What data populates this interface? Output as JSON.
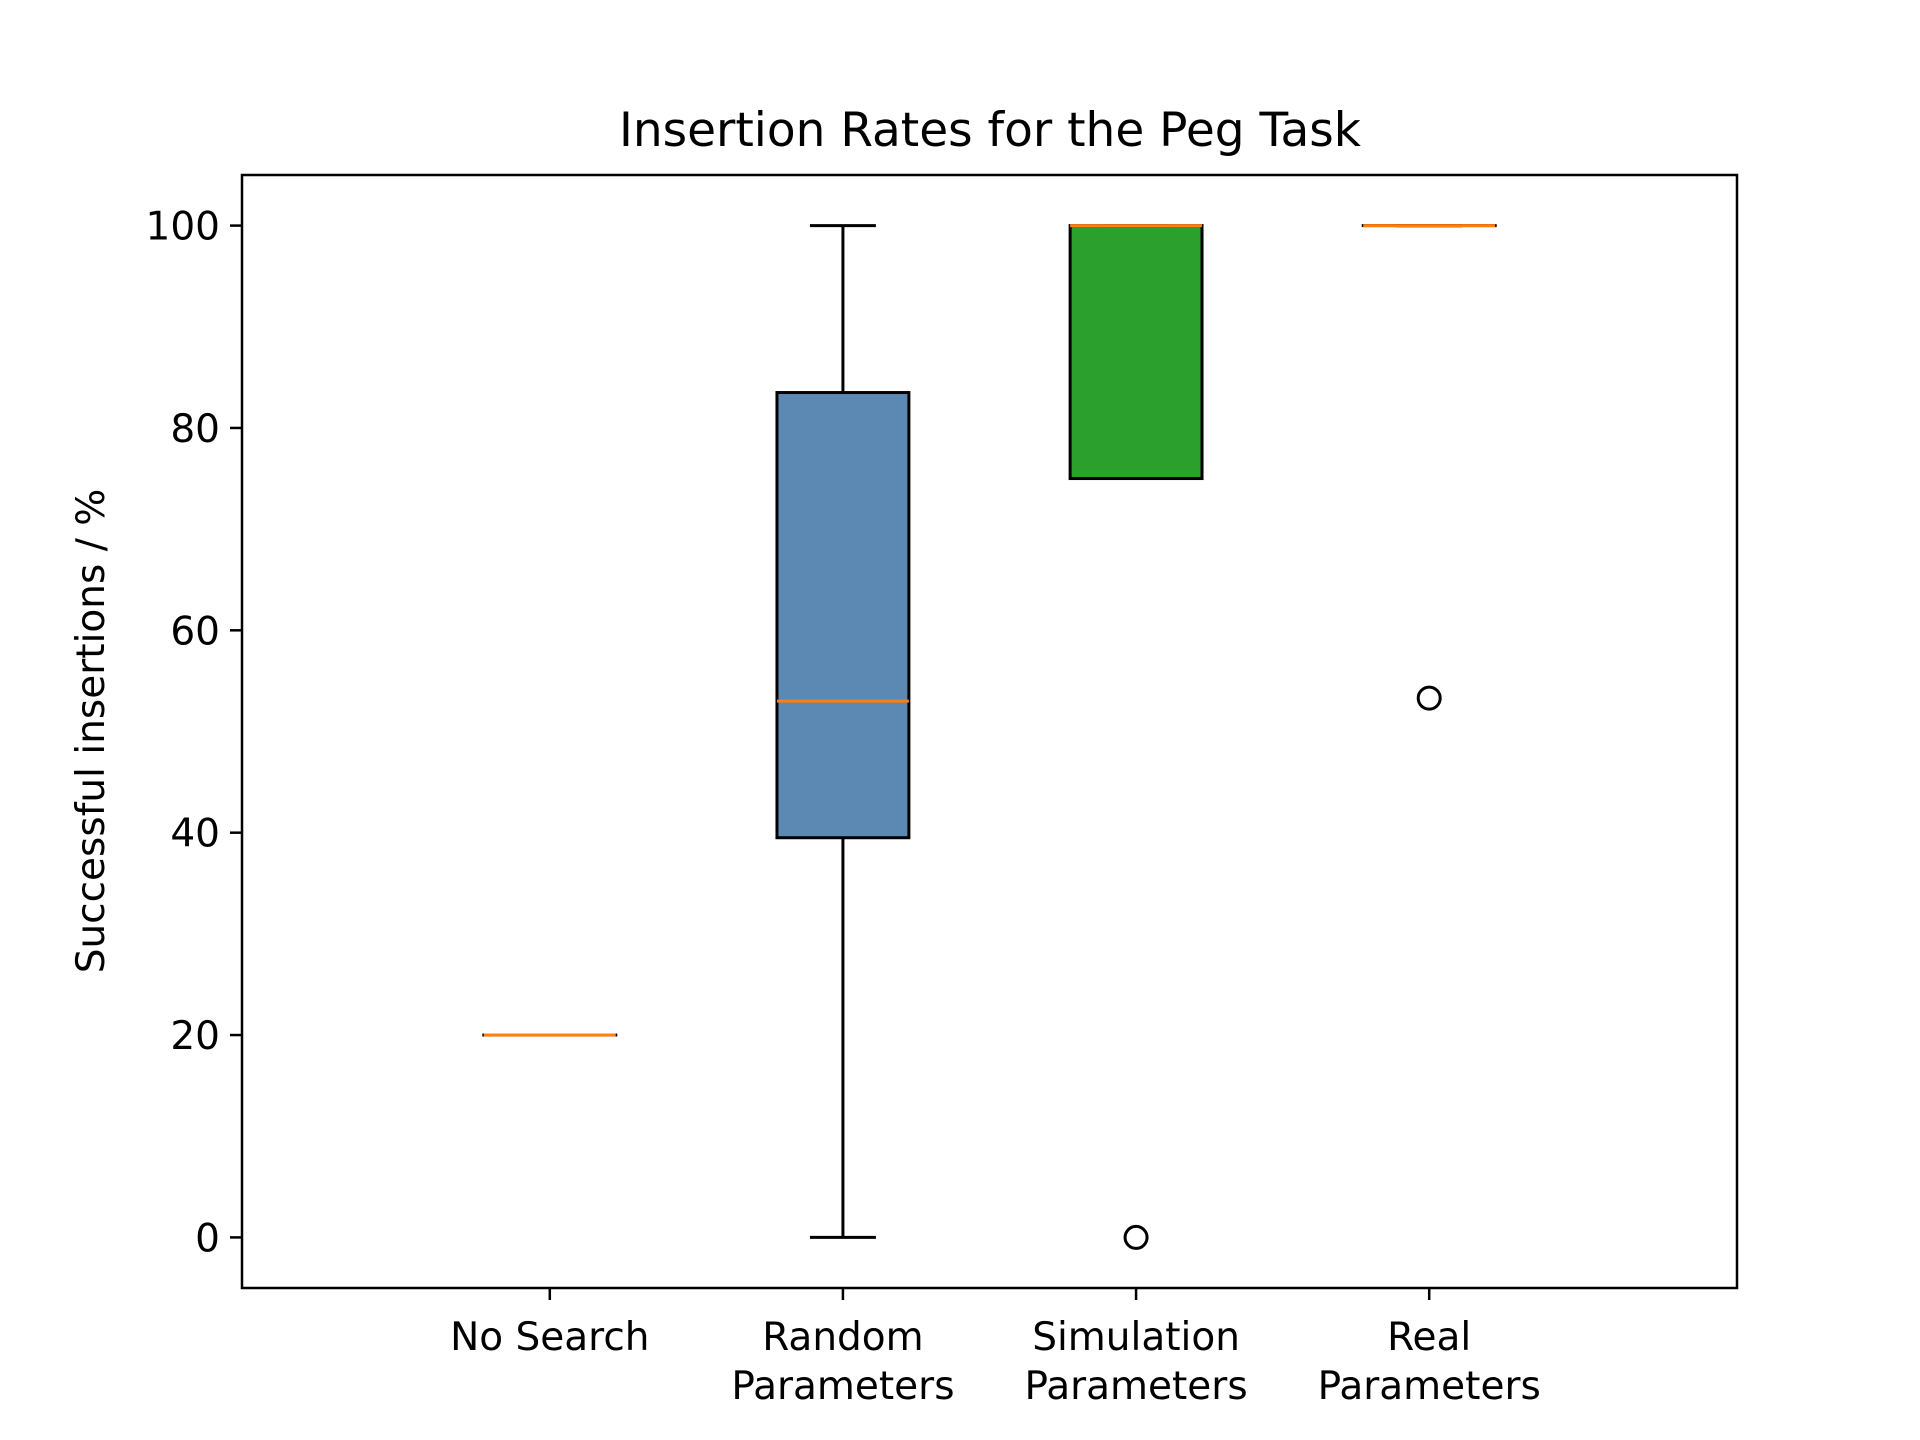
{
  "chart_data": {
    "type": "box",
    "title": "Insertion Rates for the Peg Task",
    "xlabel": "",
    "ylabel": "Successful insertions / %",
    "ylim": [
      -5,
      105
    ],
    "yticks": [
      0,
      20,
      40,
      60,
      80,
      100
    ],
    "grid": false,
    "legend": null,
    "categories": [
      [
        "No Search"
      ],
      [
        "Random",
        "Parameters"
      ],
      [
        "Simulation",
        "Parameters"
      ],
      [
        "Real",
        "Parameters"
      ]
    ],
    "boxes": [
      {
        "name": "No Search",
        "whisker_low": 20,
        "q1": 20,
        "median": 20,
        "q3": 20,
        "whisker_high": 20,
        "outliers": [],
        "color": "#1f77b4"
      },
      {
        "name": "Random Parameters",
        "whisker_low": 0,
        "q1": 39.5,
        "median": 53,
        "q3": 83.5,
        "whisker_high": 100,
        "outliers": [],
        "color": "#5b89b4"
      },
      {
        "name": "Simulation Parameters",
        "whisker_low": 75,
        "q1": 75,
        "median": 100,
        "q3": 100,
        "whisker_high": 100,
        "outliers": [
          0
        ],
        "color": "#2ca02c"
      },
      {
        "name": "Real Parameters",
        "whisker_low": 100,
        "q1": 100,
        "median": 100,
        "q3": 100,
        "whisker_high": 100,
        "outliers": [
          53.3
        ],
        "color": "#d62728"
      }
    ],
    "median_color": "#ff7f0e"
  }
}
